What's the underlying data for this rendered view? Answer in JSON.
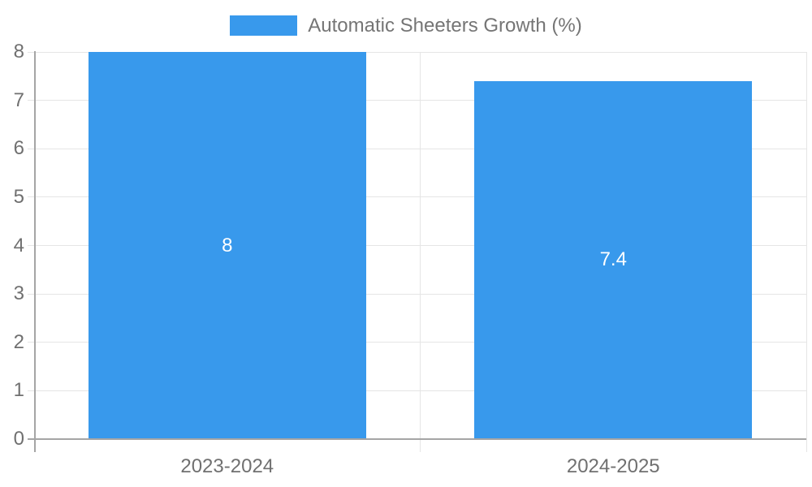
{
  "chart_data": {
    "type": "bar",
    "title": "Automatic Sheeters Growth (%)",
    "legend": {
      "label": "Automatic Sheeters Growth (%)",
      "position": "top"
    },
    "categories": [
      "2023-2024",
      "2024-2025"
    ],
    "series": [
      {
        "name": "Automatic Sheeters Growth (%)",
        "values": [
          8,
          7.4
        ],
        "color": "#3899EC"
      }
    ],
    "value_labels": [
      "8",
      "7.4"
    ],
    "xlabel": "",
    "ylabel": "",
    "ylim": [
      0,
      8
    ],
    "yticks": [
      0,
      1,
      2,
      3,
      4,
      5,
      6,
      7,
      8
    ],
    "grid": true
  },
  "colors": {
    "bar": "#3899EC",
    "grid": "#E5E5E5",
    "axis": "#A5A5A5",
    "tick_label": "#707070",
    "legend_text": "#757575",
    "value_label": "#FFFFFF",
    "background": "#FFFFFF"
  }
}
